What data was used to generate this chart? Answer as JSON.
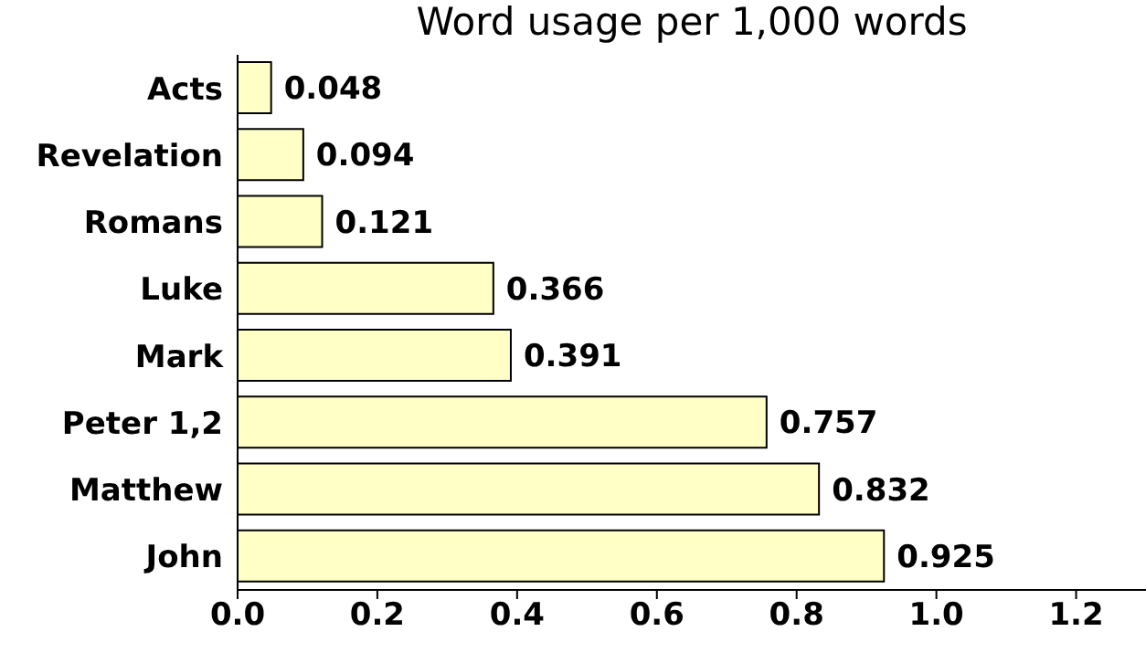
{
  "chart_data": {
    "type": "bar",
    "orientation": "horizontal",
    "title": "Word usage per 1,000 words",
    "categories": [
      "Acts",
      "Revelation",
      "Romans",
      "Luke",
      "Mark",
      "Peter 1,2",
      "Matthew",
      "John"
    ],
    "values": [
      0.048,
      0.094,
      0.121,
      0.366,
      0.391,
      0.757,
      0.832,
      0.925
    ],
    "color": "#ffffc6",
    "xlim": [
      0,
      1.3
    ],
    "xticks": [
      {
        "value": 0,
        "label": "0.0"
      },
      {
        "value": 0.2,
        "label": "0.2"
      },
      {
        "value": 0.4,
        "label": "0.4"
      },
      {
        "value": 0.6,
        "label": "0.6"
      },
      {
        "value": 0.8,
        "label": "0.8"
      },
      {
        "value": 1.0,
        "label": "1.0"
      },
      {
        "value": 1.2,
        "label": "1.2"
      }
    ],
    "data_labels": true,
    "grid": false,
    "legend": false
  }
}
